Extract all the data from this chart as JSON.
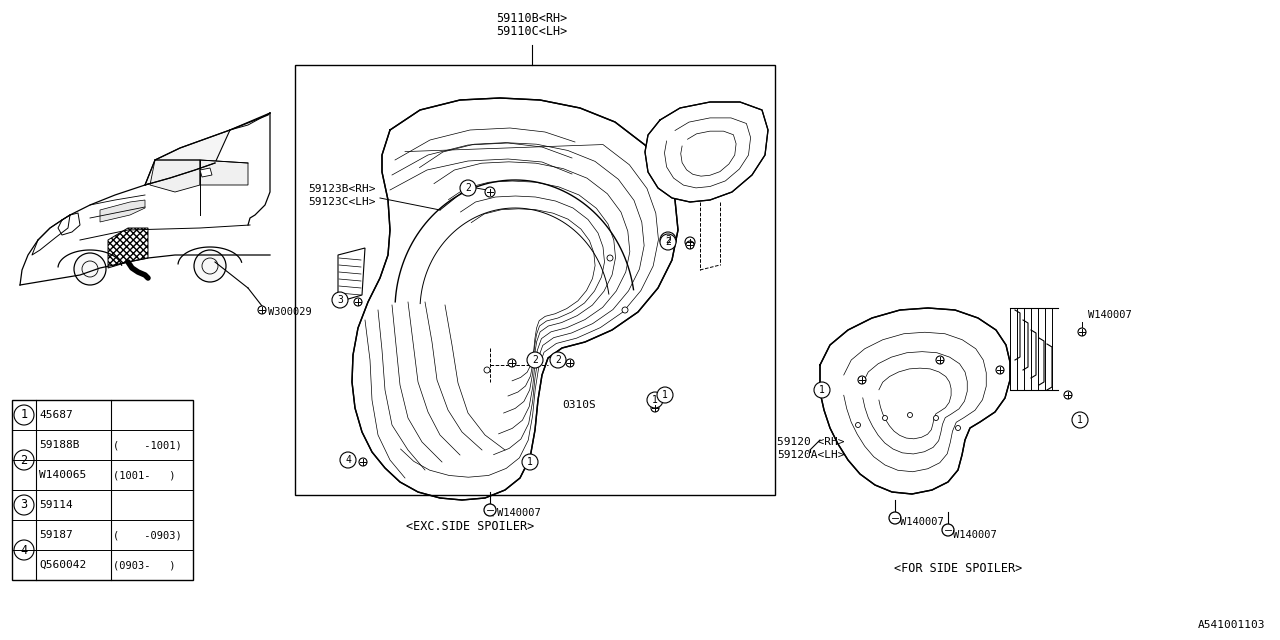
{
  "bg_color": "#ffffff",
  "line_color": "#000000",
  "diagram_id": "A541001103",
  "label_59110B": "59110B<RH>",
  "label_59110C": "59110C<LH>",
  "label_59123B": "59123B<RH>",
  "label_59123C": "59123C<LH>",
  "label_59120": "59120 <RH>",
  "label_59120A": "59120A<LH>",
  "label_W300029": "W300029",
  "label_W140007": "W140007",
  "label_0310S": "0310S",
  "label_EXC": "<EXC.SIDE SPOILER>",
  "label_FOR": "<FOR SIDE SPOILER>",
  "legend": [
    [
      "1",
      "45687",
      ""
    ],
    [
      "2",
      "59188B",
      "(    -1001)"
    ],
    [
      "2",
      "W140065",
      "(1001-   )"
    ],
    [
      "3",
      "59114",
      ""
    ],
    [
      "4",
      "59187",
      "(    -0903)"
    ],
    [
      "4",
      "Q560042",
      "(0903-   )"
    ]
  ]
}
